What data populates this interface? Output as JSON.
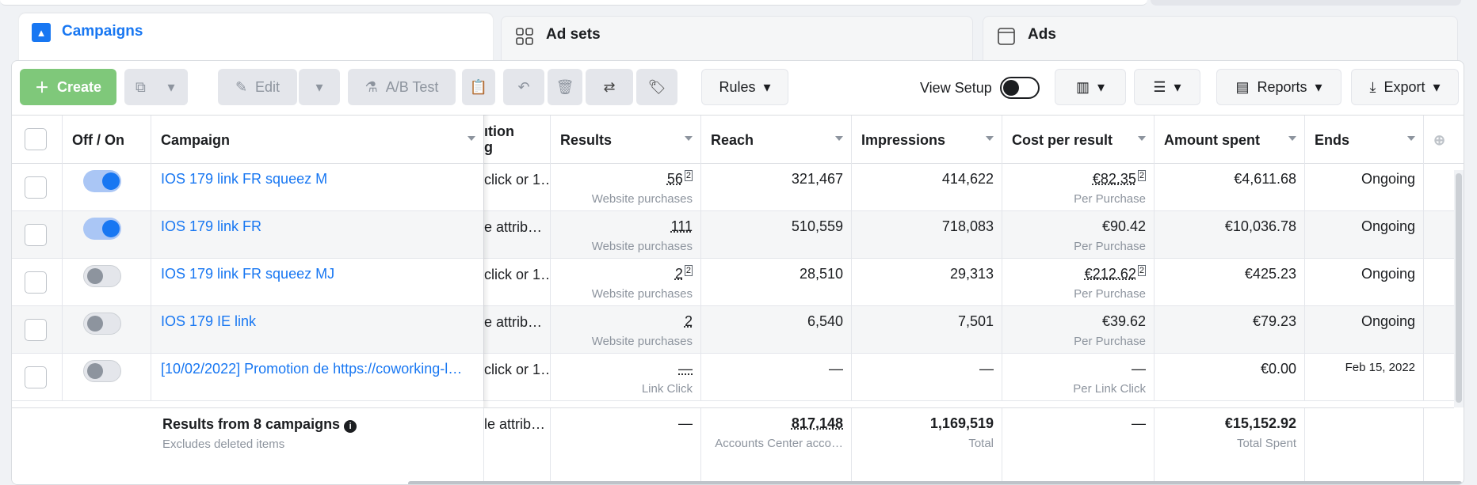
{
  "tabs": {
    "campaigns": "Campaigns",
    "adsets": "Ad sets",
    "ads": "Ads"
  },
  "toolbar": {
    "create": "Create",
    "edit": "Edit",
    "ab_test": "A/B Test",
    "rules": "Rules",
    "view_setup": "View Setup",
    "reports": "Reports",
    "export": "Export"
  },
  "table": {
    "headers": {
      "off_on": "Off / On",
      "campaign": "Campaign",
      "attribution_partial_1": "ıtion",
      "attribution_partial_2": "g",
      "results": "Results",
      "reach": "Reach",
      "impressions": "Impressions",
      "cost_per_result": "Cost per result",
      "amount_spent": "Amount spent",
      "ends": "Ends"
    },
    "rows": [
      {
        "name": "IOS 179 link FR squeez M",
        "on": true,
        "attribution": "click or 1…",
        "results": "56",
        "results_sub": "Website purchases",
        "results_flag": "2",
        "reach": "321,467",
        "impressions": "414,622",
        "cost": "€82.35",
        "cost_flag": "2",
        "cost_sub": "Per Purchase",
        "spent": "€4,611.68",
        "ends": "Ongoing"
      },
      {
        "name": "IOS 179 link FR",
        "on": true,
        "attribution": "e attrib…",
        "results": "111",
        "results_sub": "Website purchases",
        "results_flag": "",
        "reach": "510,559",
        "impressions": "718,083",
        "cost": "€90.42",
        "cost_flag": "",
        "cost_sub": "Per Purchase",
        "spent": "€10,036.78",
        "ends": "Ongoing"
      },
      {
        "name": "IOS 179 link FR squeez MJ",
        "on": false,
        "attribution": "click or 1…",
        "results": "2",
        "results_sub": "Website purchases",
        "results_flag": "2",
        "reach": "28,510",
        "impressions": "29,313",
        "cost": "€212.62",
        "cost_flag": "2",
        "cost_sub": "Per Purchase",
        "spent": "€425.23",
        "ends": "Ongoing"
      },
      {
        "name": "IOS 179 IE link",
        "on": false,
        "attribution": "e attrib…",
        "results": "2",
        "results_sub": "Website purchases",
        "results_flag": "",
        "reach": "6,540",
        "impressions": "7,501",
        "cost": "€39.62",
        "cost_flag": "",
        "cost_sub": "Per Purchase",
        "spent": "€79.23",
        "ends": "Ongoing"
      },
      {
        "name": "[10/02/2022] Promotion de https://coworking-l…",
        "on": false,
        "attribution": "click or 1…",
        "results": "—",
        "results_sub": "Link Click",
        "results_flag": "",
        "reach": "—",
        "impressions": "—",
        "cost": "—",
        "cost_flag": "",
        "cost_sub": "Per Link Click",
        "spent": "€0.00",
        "ends": "Feb 15, 2022"
      }
    ],
    "footer": {
      "title": "Results from 8 campaigns",
      "subtitle": "Excludes deleted items",
      "attribution": "le attrib…",
      "results": "—",
      "reach": "817,148",
      "reach_sub": "Accounts Center acco…",
      "impressions": "1,169,519",
      "impressions_sub": "Total",
      "cost": "—",
      "spent": "€15,152.92",
      "spent_sub": "Total Spent"
    }
  },
  "colors": {
    "accent": "#1877f2",
    "create_green": "#7fc87a"
  }
}
